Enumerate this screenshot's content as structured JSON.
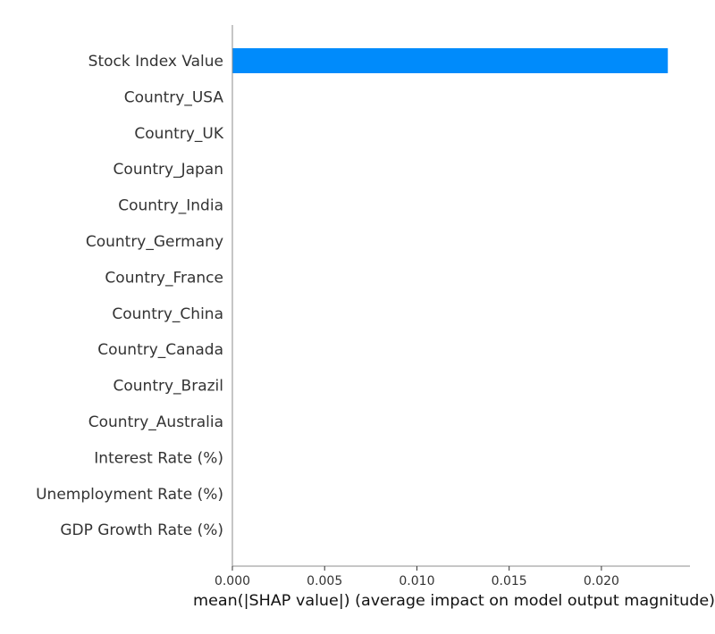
{
  "chart_data": {
    "type": "bar",
    "orientation": "horizontal",
    "categories": [
      "Stock Index Value",
      "Country_USA",
      "Country_UK",
      "Country_Japan",
      "Country_India",
      "Country_Germany",
      "Country_France",
      "Country_China",
      "Country_Canada",
      "Country_Brazil",
      "Country_Australia",
      "Interest Rate (%)",
      "Unemployment Rate (%)",
      "GDP Growth Rate (%)"
    ],
    "values": [
      0.0236,
      0,
      0,
      0,
      0,
      0,
      0,
      0,
      0,
      0,
      0,
      0,
      0,
      0
    ],
    "title": "",
    "xlabel": "mean(|SHAP value|) (average impact on model output magnitude)",
    "ylabel": "",
    "xlim": [
      0,
      0.0248
    ],
    "xticks": [
      0.0,
      0.005,
      0.01,
      0.015,
      0.02
    ],
    "xtick_labels": [
      "0.000",
      "0.005",
      "0.010",
      "0.015",
      "0.020"
    ],
    "bar_color": "#008bfb",
    "grid": false,
    "legend": "none"
  }
}
